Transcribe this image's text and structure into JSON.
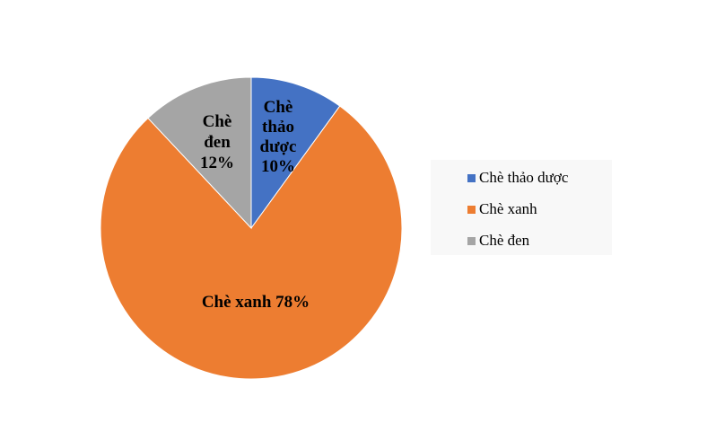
{
  "chart_data": {
    "type": "pie",
    "title": "",
    "start": "top",
    "direction": "clockwise",
    "slices": [
      {
        "name": "Chè thảo dược",
        "value": 10,
        "label": "10%",
        "color": "#4472C4"
      },
      {
        "name": "Chè xanh",
        "value": 78,
        "label": "78%",
        "color": "#ED7D31"
      },
      {
        "name": "Chè đen",
        "value": 12,
        "label": "12%",
        "color": "#A5A5A5"
      }
    ],
    "data_labels": [
      [
        "Chè",
        "thảo",
        "dược",
        "10%"
      ],
      [
        "Chè xanh 78%"
      ],
      [
        "Chè",
        "đen",
        "12%"
      ]
    ],
    "legend": {
      "placement": "right",
      "entries": [
        "Chè thảo dược",
        "Chè xanh",
        "Chè đen"
      ]
    }
  }
}
